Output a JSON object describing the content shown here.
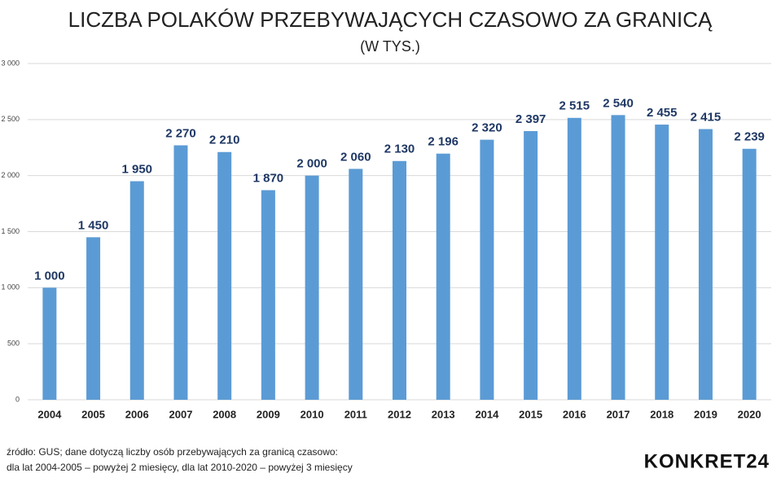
{
  "chart_data": {
    "type": "bar",
    "title": "LICZBA POLAKÓW PRZEBYWAJĄCYCH CZASOWO ZA GRANICĄ",
    "subtitle": "(W TYS.)",
    "categories": [
      "2004",
      "2005",
      "2006",
      "2007",
      "2008",
      "2009",
      "2010",
      "2011",
      "2012",
      "2013",
      "2014",
      "2015",
      "2016",
      "2017",
      "2018",
      "2019",
      "2020"
    ],
    "values": [
      1000,
      1450,
      1950,
      2270,
      2210,
      1870,
      2000,
      2060,
      2130,
      2196,
      2320,
      2397,
      2515,
      2540,
      2455,
      2415,
      2239
    ],
    "value_labels": [
      "1 000",
      "1 450",
      "1 950",
      "2 270",
      "2 210",
      "1 870",
      "2 000",
      "2 060",
      "2 130",
      "2 196",
      "2 320",
      "2 397",
      "2 515",
      "2 540",
      "2 455",
      "2 415",
      "2 239"
    ],
    "color": "#5b9bd5",
    "ylim": [
      0,
      3000
    ],
    "yticks": [
      0,
      500,
      {
        "value": 1000,
        "label": "1 000"
      },
      {
        "value": 1500,
        "label": "1 500"
      },
      {
        "value": 2000,
        "label": "2 000"
      },
      {
        "value": 2500,
        "label": "2 500"
      },
      {
        "value": 3000,
        "label": "3 000"
      }
    ],
    "grid": true,
    "source": [
      "źródło: GUS;  dane dotyczą liczby osób przebywających za granicą czasowo:",
      "dla lat 2004-2005 – powyżej 2 miesięcy, dla lat 2010-2020 – powyżej 3 miesięcy"
    ],
    "logo": "KONKRET24"
  }
}
